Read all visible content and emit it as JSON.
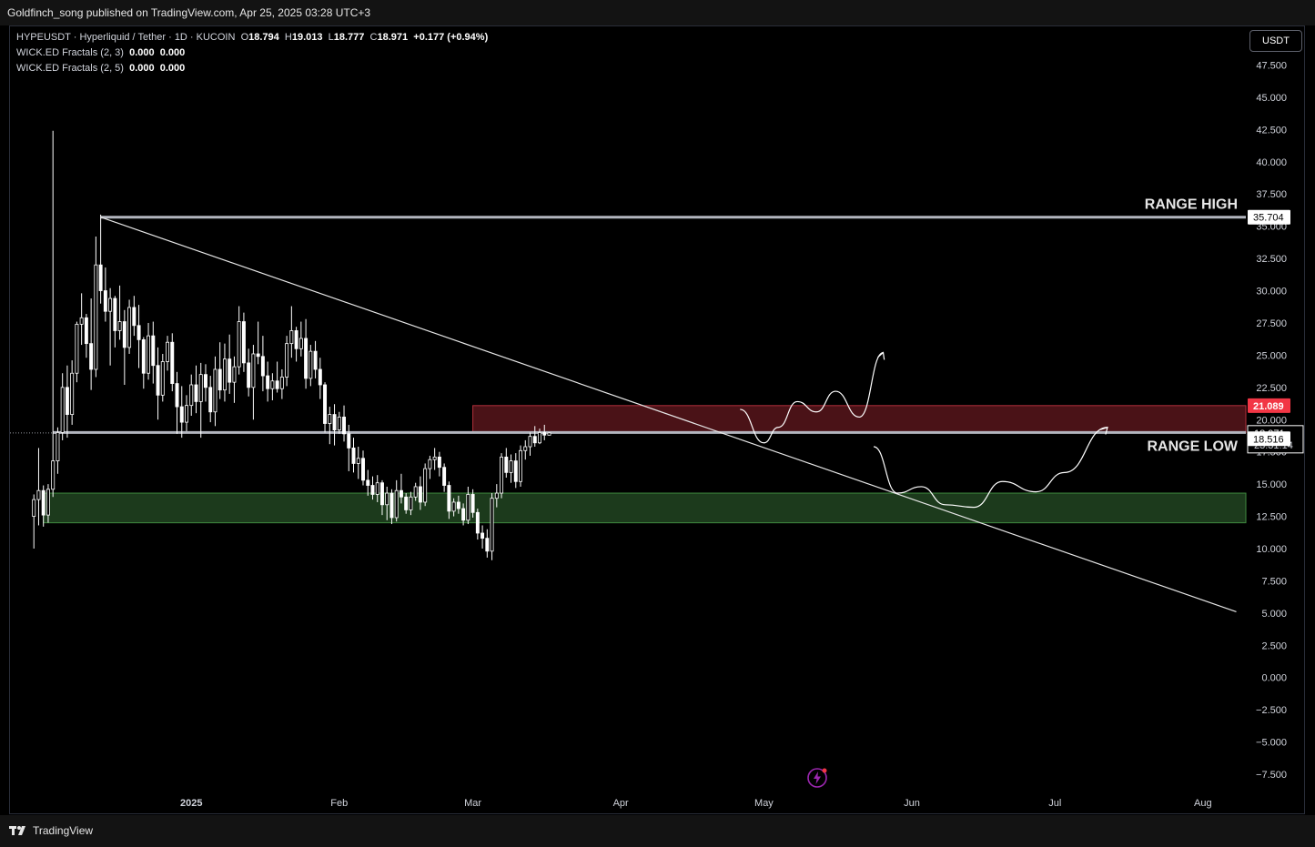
{
  "header": {
    "publisher_text": "Goldfinch_song published on TradingView.com, Apr 25, 2025 03:28 UTC+3"
  },
  "legend": {
    "symbol": "HYPEUSDT · Hyperliquid / Tether · 1D · KUCOIN",
    "open_label": "O",
    "open": "18.794",
    "high_label": "H",
    "high": "19.013",
    "low_label": "L",
    "low": "18.777",
    "close_label": "C",
    "close": "18.971",
    "change": "+0.177 (+0.94%)",
    "indicators": [
      {
        "name": "WICK.ED Fractals (2, 3)",
        "v1": "0.000",
        "v2": "0.000"
      },
      {
        "name": "WICK.ED Fractals (2, 5)",
        "v1": "0.000",
        "v2": "0.000"
      }
    ]
  },
  "currency_button": "USDT",
  "footer": {
    "brand": "TradingView"
  },
  "colors": {
    "resistance_zone": "#4a1217",
    "support_zone": "#1c3a1c",
    "price_up": "#ffffff",
    "price_down": "#ffffff",
    "tag_red": "#f23645",
    "tag_white": "#ffffff"
  },
  "chart_data": {
    "type": "candlestick",
    "symbol": "HYPEUSDT",
    "timeframe": "1D",
    "ylim": [
      -8.7,
      50.5
    ],
    "y_ticks": [
      "47.500",
      "45.000",
      "42.500",
      "40.000",
      "37.500",
      "35.000",
      "32.500",
      "30.000",
      "27.500",
      "25.000",
      "22.500",
      "20.000",
      "17.500",
      "15.000",
      "12.500",
      "10.000",
      "7.500",
      "5.000",
      "2.500",
      "0.000",
      "−2.500",
      "−5.000",
      "−7.500"
    ],
    "y_tick_values": [
      47.5,
      45,
      42.5,
      40,
      37.5,
      35,
      32.5,
      30,
      27.5,
      25,
      22.5,
      20,
      17.5,
      15,
      12.5,
      10,
      7.5,
      5,
      2.5,
      0,
      -2.5,
      -5,
      -7.5
    ],
    "x_ticks": [
      {
        "label": "2025",
        "date": "2025-01-01"
      },
      {
        "label": "Feb",
        "date": "2025-02-01"
      },
      {
        "label": "Mar",
        "date": "2025-03-01"
      },
      {
        "label": "Apr",
        "date": "2025-04-01"
      },
      {
        "label": "May",
        "date": "2025-05-01"
      },
      {
        "label": "Jun",
        "date": "2025-06-01"
      },
      {
        "label": "Jul",
        "date": "2025-07-01"
      },
      {
        "label": "Aug",
        "date": "2025-08-01"
      }
    ],
    "x_range": [
      "2024-11-24",
      "2025-08-10"
    ],
    "candles_start": "2024-11-29",
    "candles": [
      [
        12.5,
        14.2,
        10.0,
        13.8
      ],
      [
        13.8,
        17.8,
        11.8,
        14.5
      ],
      [
        14.5,
        14.9,
        11.7,
        12.6
      ],
      [
        12.6,
        15.0,
        12.0,
        14.6
      ],
      [
        14.6,
        42.4,
        14.0,
        16.8
      ],
      [
        16.8,
        19.4,
        15.8,
        19.0
      ],
      [
        19.0,
        23.6,
        18.4,
        22.5
      ],
      [
        22.5,
        24.2,
        18.6,
        20.4
      ],
      [
        20.4,
        24.6,
        19.6,
        23.6
      ],
      [
        23.6,
        27.6,
        22.9,
        27.4
      ],
      [
        27.4,
        29.8,
        25.8,
        27.9
      ],
      [
        27.9,
        28.2,
        24.8,
        25.9
      ],
      [
        25.9,
        29.4,
        22.3,
        23.9
      ],
      [
        23.9,
        34.2,
        23.3,
        32.0
      ],
      [
        32.0,
        35.9,
        29.0,
        30.0
      ],
      [
        30.0,
        31.8,
        27.6,
        28.4
      ],
      [
        28.4,
        30.2,
        24.2,
        29.4
      ],
      [
        29.4,
        29.6,
        25.6,
        26.9
      ],
      [
        26.9,
        30.4,
        26.2,
        27.6
      ],
      [
        27.6,
        28.5,
        22.7,
        25.6
      ],
      [
        25.6,
        29.3,
        25.1,
        28.7
      ],
      [
        28.7,
        29.6,
        26.5,
        27.3
      ],
      [
        27.3,
        28.9,
        24.0,
        26.2
      ],
      [
        26.2,
        26.4,
        22.4,
        23.6
      ],
      [
        23.6,
        27.5,
        23.1,
        26.5
      ],
      [
        26.5,
        27.6,
        22.8,
        24.2
      ],
      [
        24.2,
        25.6,
        20.0,
        21.9
      ],
      [
        21.9,
        25.1,
        21.4,
        24.5
      ],
      [
        24.5,
        26.5,
        23.8,
        26.0
      ],
      [
        26.0,
        26.7,
        22.2,
        22.8
      ],
      [
        22.8,
        23.7,
        18.9,
        21.0
      ],
      [
        21.0,
        22.6,
        18.6,
        19.8
      ],
      [
        19.8,
        21.9,
        19.1,
        21.1
      ],
      [
        21.1,
        23.5,
        20.3,
        22.7
      ],
      [
        22.7,
        24.2,
        20.5,
        21.4
      ],
      [
        21.4,
        24.4,
        18.6,
        23.5
      ],
      [
        23.5,
        24.3,
        21.4,
        22.5
      ],
      [
        22.5,
        23.4,
        19.8,
        20.6
      ],
      [
        20.6,
        24.9,
        19.5,
        23.9
      ],
      [
        23.9,
        26.0,
        21.6,
        22.3
      ],
      [
        22.3,
        25.9,
        21.4,
        24.7
      ],
      [
        24.7,
        26.6,
        22.0,
        22.9
      ],
      [
        22.9,
        24.9,
        21.3,
        24.1
      ],
      [
        24.1,
        28.8,
        23.5,
        27.6
      ],
      [
        27.6,
        28.3,
        23.7,
        24.4
      ],
      [
        24.4,
        25.5,
        21.8,
        22.5
      ],
      [
        22.5,
        25.8,
        20.0,
        25.1
      ],
      [
        25.1,
        27.6,
        24.3,
        24.9
      ],
      [
        24.9,
        26.5,
        22.2,
        23.4
      ],
      [
        23.4,
        24.5,
        21.4,
        22.4
      ],
      [
        22.4,
        23.6,
        21.5,
        23.0
      ],
      [
        23.0,
        24.5,
        22.1,
        22.4
      ],
      [
        22.4,
        23.9,
        21.6,
        23.3
      ],
      [
        23.3,
        26.5,
        22.6,
        25.9
      ],
      [
        25.9,
        28.8,
        24.8,
        26.9
      ],
      [
        26.9,
        27.2,
        24.5,
        25.5
      ],
      [
        25.5,
        27.6,
        24.9,
        26.3
      ],
      [
        26.3,
        27.8,
        22.4,
        23.2
      ],
      [
        23.2,
        25.8,
        22.6,
        25.3
      ],
      [
        25.3,
        26.1,
        23.2,
        23.9
      ],
      [
        23.9,
        24.8,
        21.6,
        22.7
      ],
      [
        22.7,
        22.9,
        19.0,
        19.7
      ],
      [
        19.7,
        21.0,
        18.1,
        20.4
      ],
      [
        20.4,
        21.2,
        18.0,
        19.2
      ],
      [
        19.2,
        20.6,
        18.9,
        20.2
      ],
      [
        20.2,
        21.1,
        18.3,
        18.9
      ],
      [
        18.9,
        19.6,
        16.0,
        17.8
      ],
      [
        17.8,
        18.6,
        15.9,
        16.6
      ],
      [
        16.6,
        17.9,
        15.4,
        17.0
      ],
      [
        17.0,
        17.6,
        14.9,
        15.3
      ],
      [
        15.3,
        16.1,
        14.1,
        14.9
      ],
      [
        14.9,
        15.6,
        13.8,
        14.2
      ],
      [
        14.2,
        15.7,
        13.6,
        15.1
      ],
      [
        15.1,
        15.3,
        12.6,
        13.4
      ],
      [
        13.4,
        14.8,
        12.2,
        14.3
      ],
      [
        14.3,
        14.6,
        11.9,
        12.4
      ],
      [
        12.4,
        15.3,
        12.1,
        14.5
      ],
      [
        14.5,
        15.8,
        13.5,
        14.0
      ],
      [
        14.0,
        14.3,
        12.7,
        13.0
      ],
      [
        13.0,
        14.4,
        12.6,
        14.0
      ],
      [
        14.0,
        15.1,
        13.7,
        14.8
      ],
      [
        14.8,
        15.6,
        13.0,
        13.6
      ],
      [
        13.6,
        16.6,
        13.3,
        16.2
      ],
      [
        16.2,
        17.2,
        15.4,
        16.9
      ],
      [
        16.9,
        17.8,
        16.1,
        17.1
      ],
      [
        17.1,
        17.5,
        15.6,
        16.3
      ],
      [
        16.3,
        16.6,
        14.4,
        14.9
      ],
      [
        14.9,
        15.2,
        12.3,
        12.9
      ],
      [
        12.9,
        13.9,
        12.5,
        13.6
      ],
      [
        13.6,
        14.1,
        12.7,
        13.1
      ],
      [
        13.1,
        13.5,
        11.8,
        12.2
      ],
      [
        12.2,
        14.8,
        11.9,
        14.2
      ],
      [
        14.2,
        14.6,
        12.4,
        12.8
      ],
      [
        12.8,
        13.1,
        10.7,
        11.2
      ],
      [
        11.2,
        11.8,
        10.0,
        10.8
      ],
      [
        10.8,
        11.5,
        9.3,
        9.8
      ],
      [
        9.8,
        14.3,
        9.1,
        13.9
      ],
      [
        13.9,
        15.0,
        13.2,
        14.3
      ],
      [
        14.3,
        17.4,
        13.9,
        17.1
      ],
      [
        17.1,
        17.8,
        15.5,
        15.9
      ],
      [
        15.9,
        17.3,
        15.1,
        16.8
      ],
      [
        16.8,
        17.4,
        14.7,
        15.2
      ],
      [
        15.2,
        18.0,
        14.8,
        17.6
      ],
      [
        17.6,
        18.4,
        16.9,
        17.9
      ],
      [
        17.9,
        19.0,
        17.2,
        18.7
      ],
      [
        18.7,
        19.5,
        17.9,
        18.2
      ],
      [
        18.2,
        19.3,
        18.1,
        19.0
      ],
      [
        19.0,
        19.6,
        18.4,
        18.8
      ],
      [
        18.794,
        19.013,
        18.777,
        18.971
      ]
    ],
    "annotations": {
      "range_high": {
        "label": "RANGE HIGH",
        "value": 35.704,
        "from": "2024-12-13"
      },
      "range_low": {
        "label": "RANGE LOW",
        "value": 19.0,
        "from": "2024-12-03"
      },
      "resistance_zone": {
        "top": 21.089,
        "bottom": 18.984,
        "from": "2025-03-01"
      },
      "support_zone": {
        "top": 14.3,
        "bottom": 12.0,
        "from": "2024-12-01"
      },
      "trendline": {
        "from": [
          "2024-12-13",
          35.704
        ],
        "to": [
          "2025-08-08",
          5.1
        ]
      },
      "projection_paths": [
        [
          [
            "2025-04-26",
            20.8
          ],
          [
            "2025-05-01",
            18.2
          ],
          [
            "2025-05-04",
            19.4
          ],
          [
            "2025-05-08",
            21.4
          ],
          [
            "2025-05-12",
            20.6
          ],
          [
            "2025-05-16",
            22.2
          ],
          [
            "2025-05-21",
            20.2
          ],
          [
            "2025-05-26",
            25.2
          ]
        ],
        [
          [
            "2025-05-24",
            17.9
          ],
          [
            "2025-05-29",
            14.3
          ],
          [
            "2025-06-03",
            14.8
          ],
          [
            "2025-06-08",
            13.4
          ],
          [
            "2025-06-14",
            13.2
          ],
          [
            "2025-06-20",
            15.2
          ],
          [
            "2025-06-27",
            14.4
          ],
          [
            "2025-07-03",
            15.9
          ],
          [
            "2025-07-12",
            19.4
          ]
        ]
      ]
    },
    "price_tags": [
      {
        "value": "35.704",
        "style": "white"
      },
      {
        "value": "21.089",
        "style": "red"
      },
      {
        "value": "18.984",
        "style": "red"
      },
      {
        "value": "18.971",
        "style": "current",
        "countdown": "23:31:14"
      },
      {
        "value": "18.516",
        "style": "white"
      }
    ],
    "current_price": 18.971
  }
}
